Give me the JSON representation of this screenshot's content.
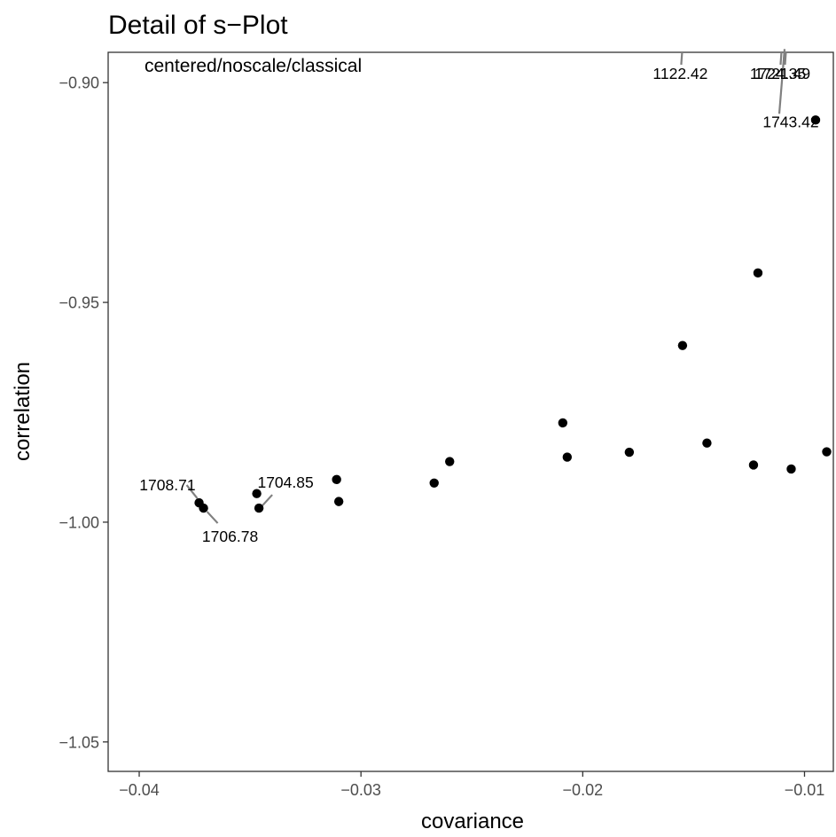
{
  "chart_data": {
    "type": "scatter",
    "title": "Detail of s−Plot",
    "annotation": "centered/noscale/classical",
    "xlabel": "covariance",
    "ylabel": "correlation",
    "xlim": [
      -0.0414,
      -0.0087
    ],
    "ylim": [
      -1.0567,
      -0.8931
    ],
    "grid": false,
    "xticks": [
      -0.04,
      -0.03,
      -0.02,
      -0.01
    ],
    "xtick_labels": [
      "−0.04",
      "−0.03",
      "−0.02",
      "−0.01"
    ],
    "yticks": [
      -0.9,
      -0.95,
      -1.0,
      -1.05
    ],
    "ytick_labels": [
      "−0.90",
      "−0.95",
      "−1.00",
      "−1.05"
    ],
    "points": [
      {
        "x": -0.0373,
        "y": -0.9956
      },
      {
        "x": -0.0371,
        "y": -0.9968
      },
      {
        "x": -0.0347,
        "y": -0.9935
      },
      {
        "x": -0.0346,
        "y": -0.9968
      },
      {
        "x": -0.0311,
        "y": -0.9903
      },
      {
        "x": -0.031,
        "y": -0.9953
      },
      {
        "x": -0.0267,
        "y": -0.9911
      },
      {
        "x": -0.026,
        "y": -0.9862
      },
      {
        "x": -0.0209,
        "y": -0.9774
      },
      {
        "x": -0.0207,
        "y": -0.9852
      },
      {
        "x": -0.0179,
        "y": -0.9841
      },
      {
        "x": -0.0155,
        "y": -0.9598
      },
      {
        "x": -0.0144,
        "y": -0.982
      },
      {
        "x": -0.0123,
        "y": -0.987
      },
      {
        "x": -0.0121,
        "y": -0.9433
      },
      {
        "x": -0.0106,
        "y": -0.9879
      },
      {
        "x": -0.0095,
        "y": -0.9085
      },
      {
        "x": -0.009,
        "y": -0.984
      }
    ],
    "point_labels": [
      {
        "text": "1708.71",
        "x": -0.0373,
        "y": -0.9956
      },
      {
        "text": "1706.78",
        "x": -0.0371,
        "y": -0.9968
      },
      {
        "text": "1704.85",
        "x": -0.0346,
        "y": -0.9968
      },
      {
        "text": "1122.42",
        "x": -0.0146,
        "y": -0.888
      },
      {
        "text": "1724.35",
        "x": -0.0112,
        "y": -0.888
      },
      {
        "text": "1721.49",
        "x": -0.011,
        "y": -0.888
      },
      {
        "text": "1743.42",
        "x": -0.0095,
        "y": -0.9085
      }
    ],
    "colors": {
      "points": "#000000",
      "leader_lines": "#808080",
      "tick_labels": "#4d4d4d",
      "axis_lines": "#333333"
    }
  }
}
